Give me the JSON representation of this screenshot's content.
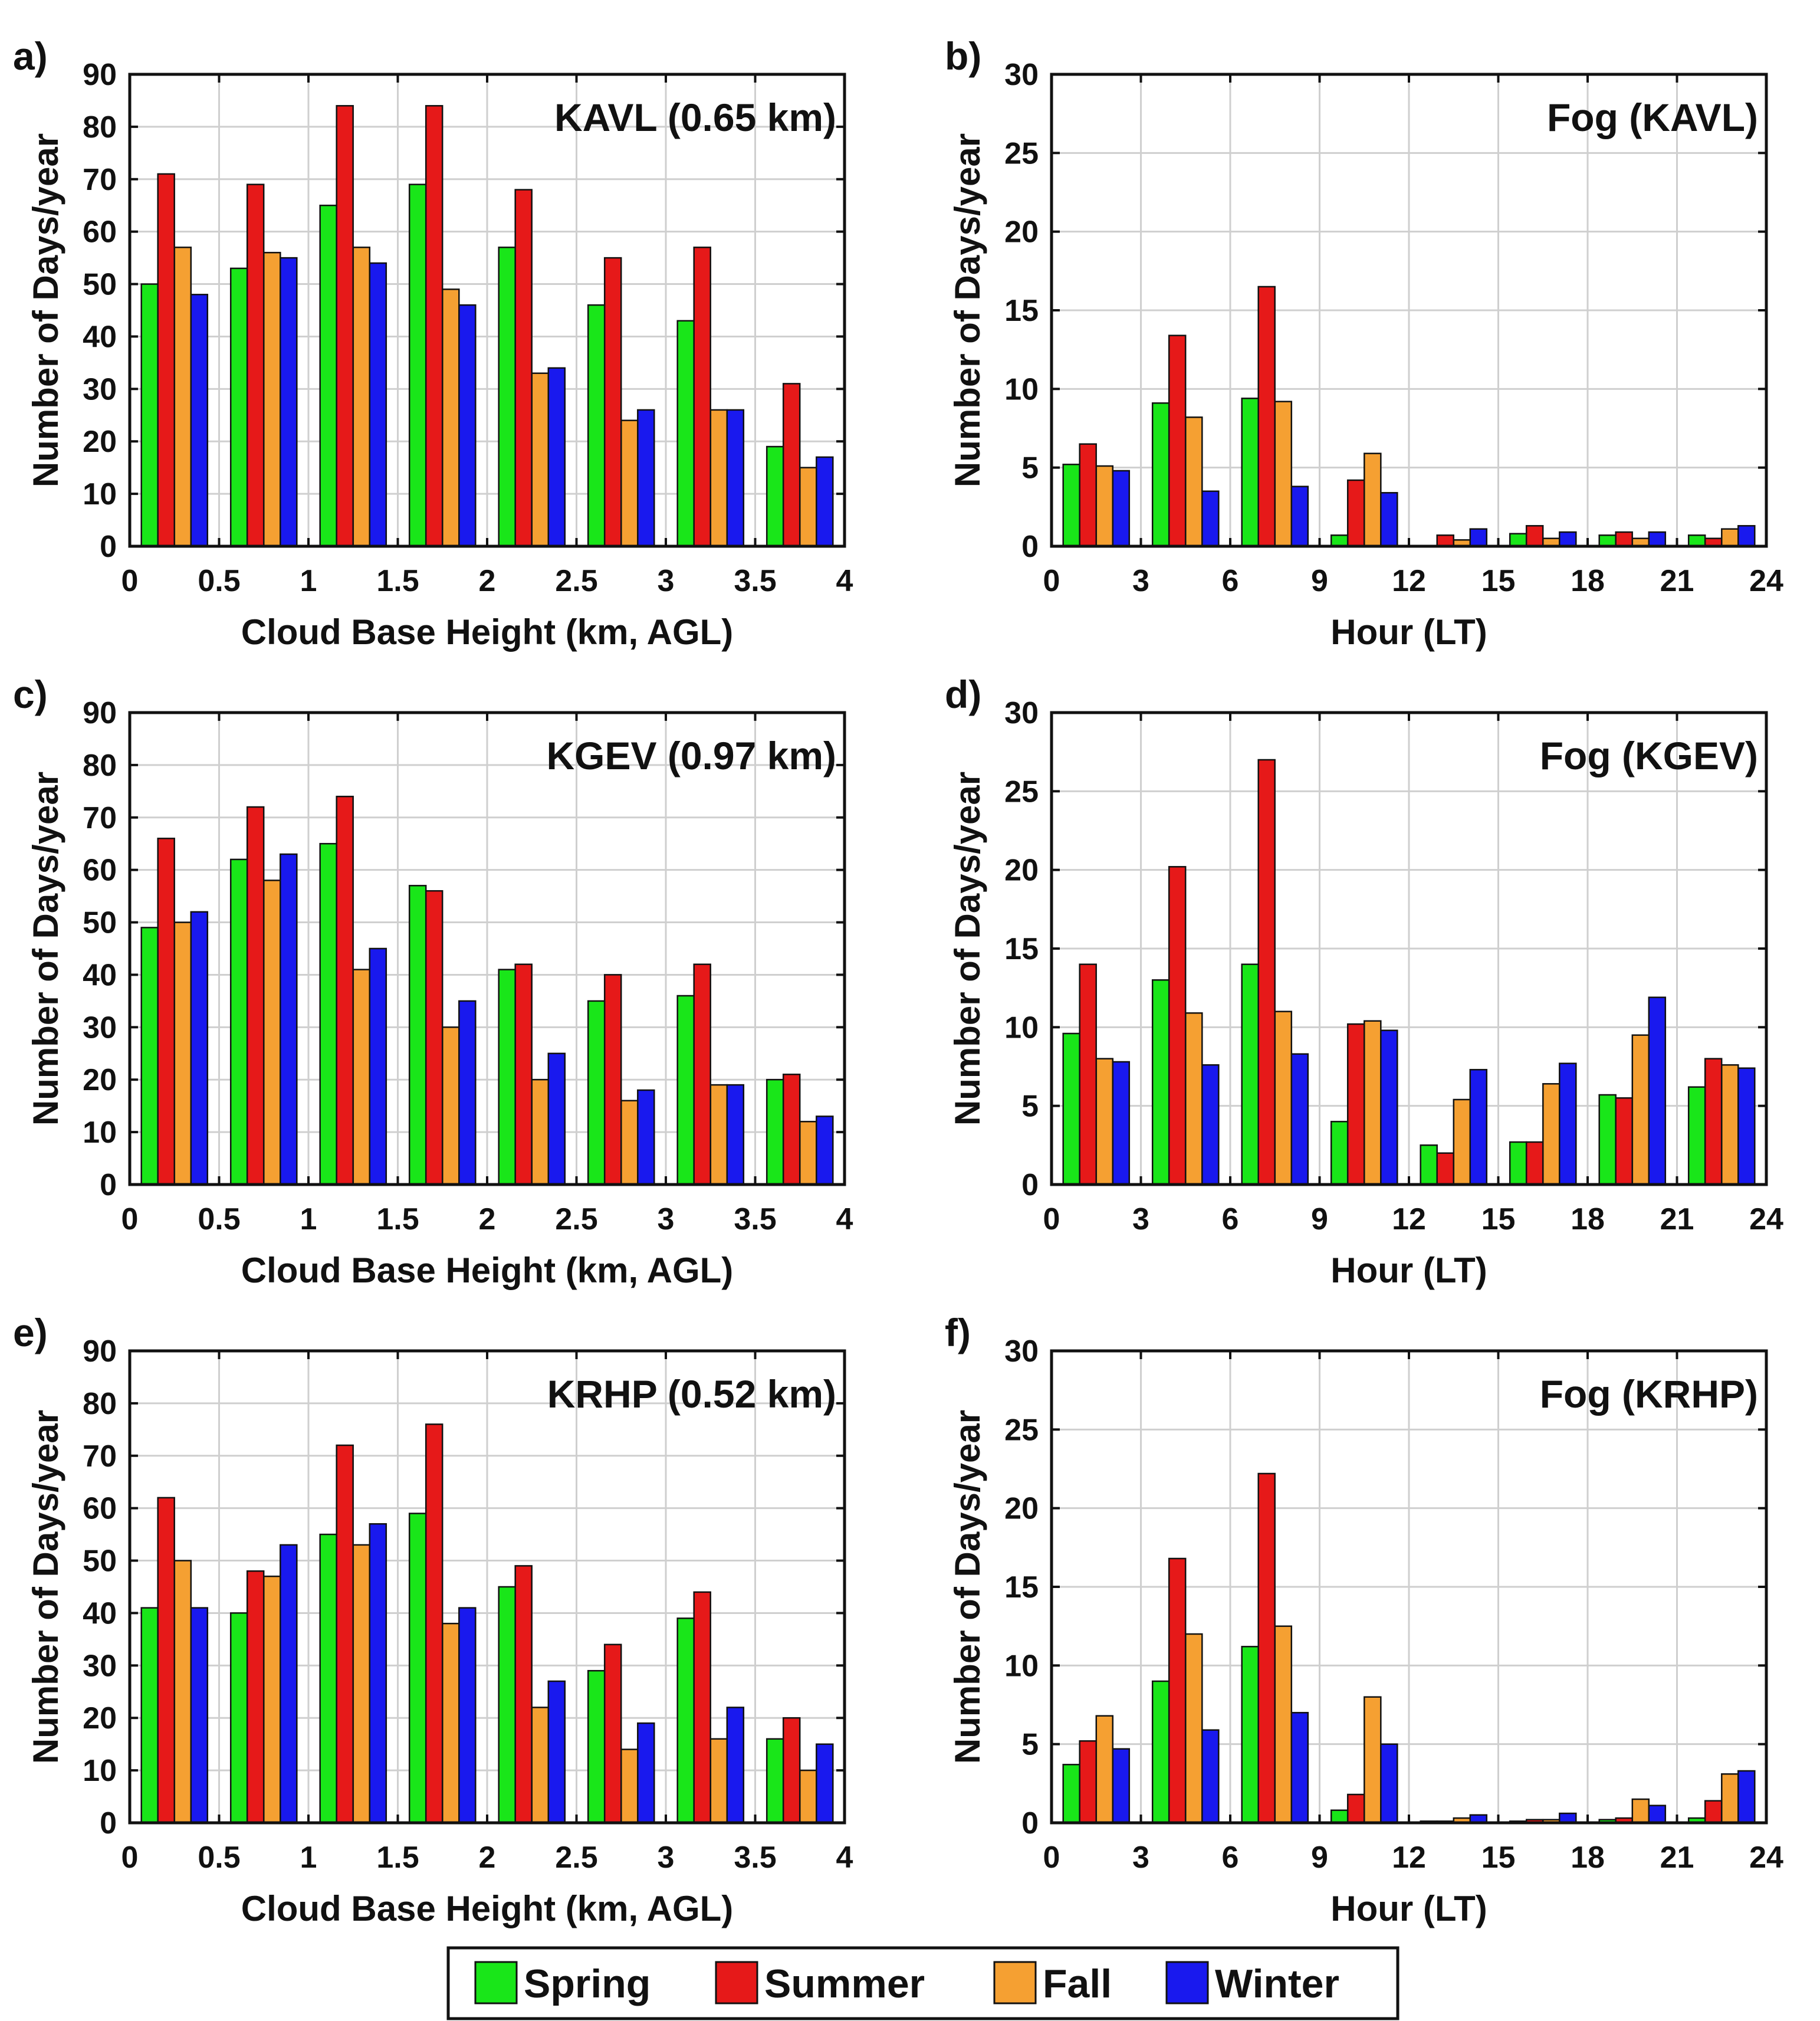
{
  "colors": {
    "Spring": "#19e619",
    "Summer": "#e61919",
    "Fall": "#f5a032",
    "Winter": "#1919ee"
  },
  "legend": {
    "entries": [
      "Spring",
      "Summer",
      "Fall",
      "Winter"
    ]
  },
  "chart_data": [
    {
      "panel": "a)",
      "type": "bar",
      "title": "KAVL (0.65 km)",
      "xlabel": "Cloud Base Height (km, AGL)",
      "ylabel": "Number of Days/year",
      "xlim": [
        0,
        4
      ],
      "ylim": [
        0,
        90
      ],
      "xticks": [
        "0",
        "0.5",
        "1",
        "1.5",
        "2",
        "2.5",
        "3",
        "3.5",
        "4"
      ],
      "yticks": [
        "0",
        "10",
        "20",
        "30",
        "40",
        "50",
        "60",
        "70",
        "80",
        "90"
      ],
      "bin_width": 0.5,
      "bin_centers": [
        0.25,
        0.75,
        1.25,
        1.75,
        2.25,
        2.75,
        3.25,
        3.75
      ],
      "series": [
        {
          "name": "Spring",
          "values": [
            50,
            53,
            65,
            69,
            57,
            46,
            43,
            19
          ]
        },
        {
          "name": "Summer",
          "values": [
            71,
            69,
            84,
            84,
            68,
            55,
            57,
            31
          ]
        },
        {
          "name": "Fall",
          "values": [
            57,
            56,
            57,
            49,
            33,
            24,
            26,
            15
          ]
        },
        {
          "name": "Winter",
          "values": [
            48,
            55,
            54,
            46,
            34,
            26,
            26,
            17
          ]
        }
      ]
    },
    {
      "panel": "b)",
      "type": "bar",
      "title": "Fog (KAVL)",
      "xlabel": "Hour (LT)",
      "ylabel": "Number of Days/year",
      "xlim": [
        0,
        24
      ],
      "ylim": [
        0,
        30
      ],
      "xticks": [
        "0",
        "3",
        "6",
        "9",
        "12",
        "15",
        "18",
        "21",
        "24"
      ],
      "yticks": [
        "0",
        "5",
        "10",
        "15",
        "20",
        "25",
        "30"
      ],
      "bin_width": 3,
      "bin_centers": [
        1.5,
        4.5,
        7.5,
        10.5,
        13.5,
        16.5,
        19.5,
        22.5
      ],
      "series": [
        {
          "name": "Spring",
          "values": [
            5.2,
            9.1,
            9.4,
            0.7,
            0.0,
            0.8,
            0.7,
            0.7
          ]
        },
        {
          "name": "Summer",
          "values": [
            6.5,
            13.4,
            16.5,
            4.2,
            0.7,
            1.3,
            0.9,
            0.5
          ]
        },
        {
          "name": "Fall",
          "values": [
            5.1,
            8.2,
            9.2,
            5.9,
            0.4,
            0.5,
            0.5,
            1.1
          ]
        },
        {
          "name": "Winter",
          "values": [
            4.8,
            3.5,
            3.8,
            3.4,
            1.1,
            0.9,
            0.9,
            1.3
          ]
        }
      ]
    },
    {
      "panel": "c)",
      "type": "bar",
      "title": "KGEV (0.97 km)",
      "xlabel": "Cloud Base Height (km, AGL)",
      "ylabel": "Number of Days/year",
      "xlim": [
        0,
        4
      ],
      "ylim": [
        0,
        90
      ],
      "xticks": [
        "0",
        "0.5",
        "1",
        "1.5",
        "2",
        "2.5",
        "3",
        "3.5",
        "4"
      ],
      "yticks": [
        "0",
        "10",
        "20",
        "30",
        "40",
        "50",
        "60",
        "70",
        "80",
        "90"
      ],
      "bin_width": 0.5,
      "bin_centers": [
        0.25,
        0.75,
        1.25,
        1.75,
        2.25,
        2.75,
        3.25,
        3.75
      ],
      "series": [
        {
          "name": "Spring",
          "values": [
            49,
            62,
            65,
            57,
            41,
            35,
            36,
            20
          ]
        },
        {
          "name": "Summer",
          "values": [
            66,
            72,
            74,
            56,
            42,
            40,
            42,
            21
          ]
        },
        {
          "name": "Fall",
          "values": [
            50,
            58,
            41,
            30,
            20,
            16,
            19,
            12
          ]
        },
        {
          "name": "Winter",
          "values": [
            52,
            63,
            45,
            35,
            25,
            18,
            19,
            13
          ]
        }
      ]
    },
    {
      "panel": "d)",
      "type": "bar",
      "title": "Fog (KGEV)",
      "xlabel": "Hour (LT)",
      "ylabel": "Number of Days/year",
      "xlim": [
        0,
        24
      ],
      "ylim": [
        0,
        30
      ],
      "xticks": [
        "0",
        "3",
        "6",
        "9",
        "12",
        "15",
        "18",
        "21",
        "24"
      ],
      "yticks": [
        "0",
        "5",
        "10",
        "15",
        "20",
        "25",
        "30"
      ],
      "bin_width": 3,
      "bin_centers": [
        1.5,
        4.5,
        7.5,
        10.5,
        13.5,
        16.5,
        19.5,
        22.5
      ],
      "series": [
        {
          "name": "Spring",
          "values": [
            9.6,
            13.0,
            14.0,
            4.0,
            2.5,
            2.7,
            5.7,
            6.2
          ]
        },
        {
          "name": "Summer",
          "values": [
            14.0,
            20.2,
            27.0,
            10.2,
            2.0,
            2.7,
            5.5,
            8.0
          ]
        },
        {
          "name": "Fall",
          "values": [
            8.0,
            10.9,
            11.0,
            10.4,
            5.4,
            6.4,
            9.5,
            7.6
          ]
        },
        {
          "name": "Winter",
          "values": [
            7.8,
            7.6,
            8.3,
            9.8,
            7.3,
            7.7,
            11.9,
            7.4
          ]
        }
      ]
    },
    {
      "panel": "e)",
      "type": "bar",
      "title": "KRHP (0.52 km)",
      "xlabel": "Cloud Base Height (km, AGL)",
      "ylabel": "Number of Days/year",
      "xlim": [
        0,
        4
      ],
      "ylim": [
        0,
        90
      ],
      "xticks": [
        "0",
        "0.5",
        "1",
        "1.5",
        "2",
        "2.5",
        "3",
        "3.5",
        "4"
      ],
      "yticks": [
        "0",
        "10",
        "20",
        "30",
        "40",
        "50",
        "60",
        "70",
        "80",
        "90"
      ],
      "bin_width": 0.5,
      "bin_centers": [
        0.25,
        0.75,
        1.25,
        1.75,
        2.25,
        2.75,
        3.25,
        3.75
      ],
      "series": [
        {
          "name": "Spring",
          "values": [
            41,
            40,
            55,
            59,
            45,
            29,
            39,
            16
          ]
        },
        {
          "name": "Summer",
          "values": [
            62,
            48,
            72,
            76,
            49,
            34,
            44,
            20
          ]
        },
        {
          "name": "Fall",
          "values": [
            50,
            47,
            53,
            38,
            22,
            14,
            16,
            10
          ]
        },
        {
          "name": "Winter",
          "values": [
            41,
            53,
            57,
            41,
            27,
            19,
            22,
            15
          ]
        }
      ]
    },
    {
      "panel": "f)",
      "type": "bar",
      "title": "Fog (KRHP)",
      "xlabel": "Hour (LT)",
      "ylabel": "Number of Days/year",
      "xlim": [
        0,
        24
      ],
      "ylim": [
        0,
        30
      ],
      "xticks": [
        "0",
        "3",
        "6",
        "9",
        "12",
        "15",
        "18",
        "21",
        "24"
      ],
      "yticks": [
        "0",
        "5",
        "10",
        "15",
        "20",
        "25",
        "30"
      ],
      "bin_width": 3,
      "bin_centers": [
        1.5,
        4.5,
        7.5,
        10.5,
        13.5,
        16.5,
        19.5,
        22.5
      ],
      "series": [
        {
          "name": "Spring",
          "values": [
            3.7,
            9.0,
            11.2,
            0.8,
            0.1,
            0.1,
            0.2,
            0.3
          ]
        },
        {
          "name": "Summer",
          "values": [
            5.2,
            16.8,
            22.2,
            1.8,
            0.1,
            0.2,
            0.3,
            1.4
          ]
        },
        {
          "name": "Fall",
          "values": [
            6.8,
            12.0,
            12.5,
            8.0,
            0.3,
            0.2,
            1.5,
            3.1
          ]
        },
        {
          "name": "Winter",
          "values": [
            4.7,
            5.9,
            7.0,
            5.0,
            0.5,
            0.6,
            1.1,
            3.3
          ]
        }
      ]
    }
  ]
}
